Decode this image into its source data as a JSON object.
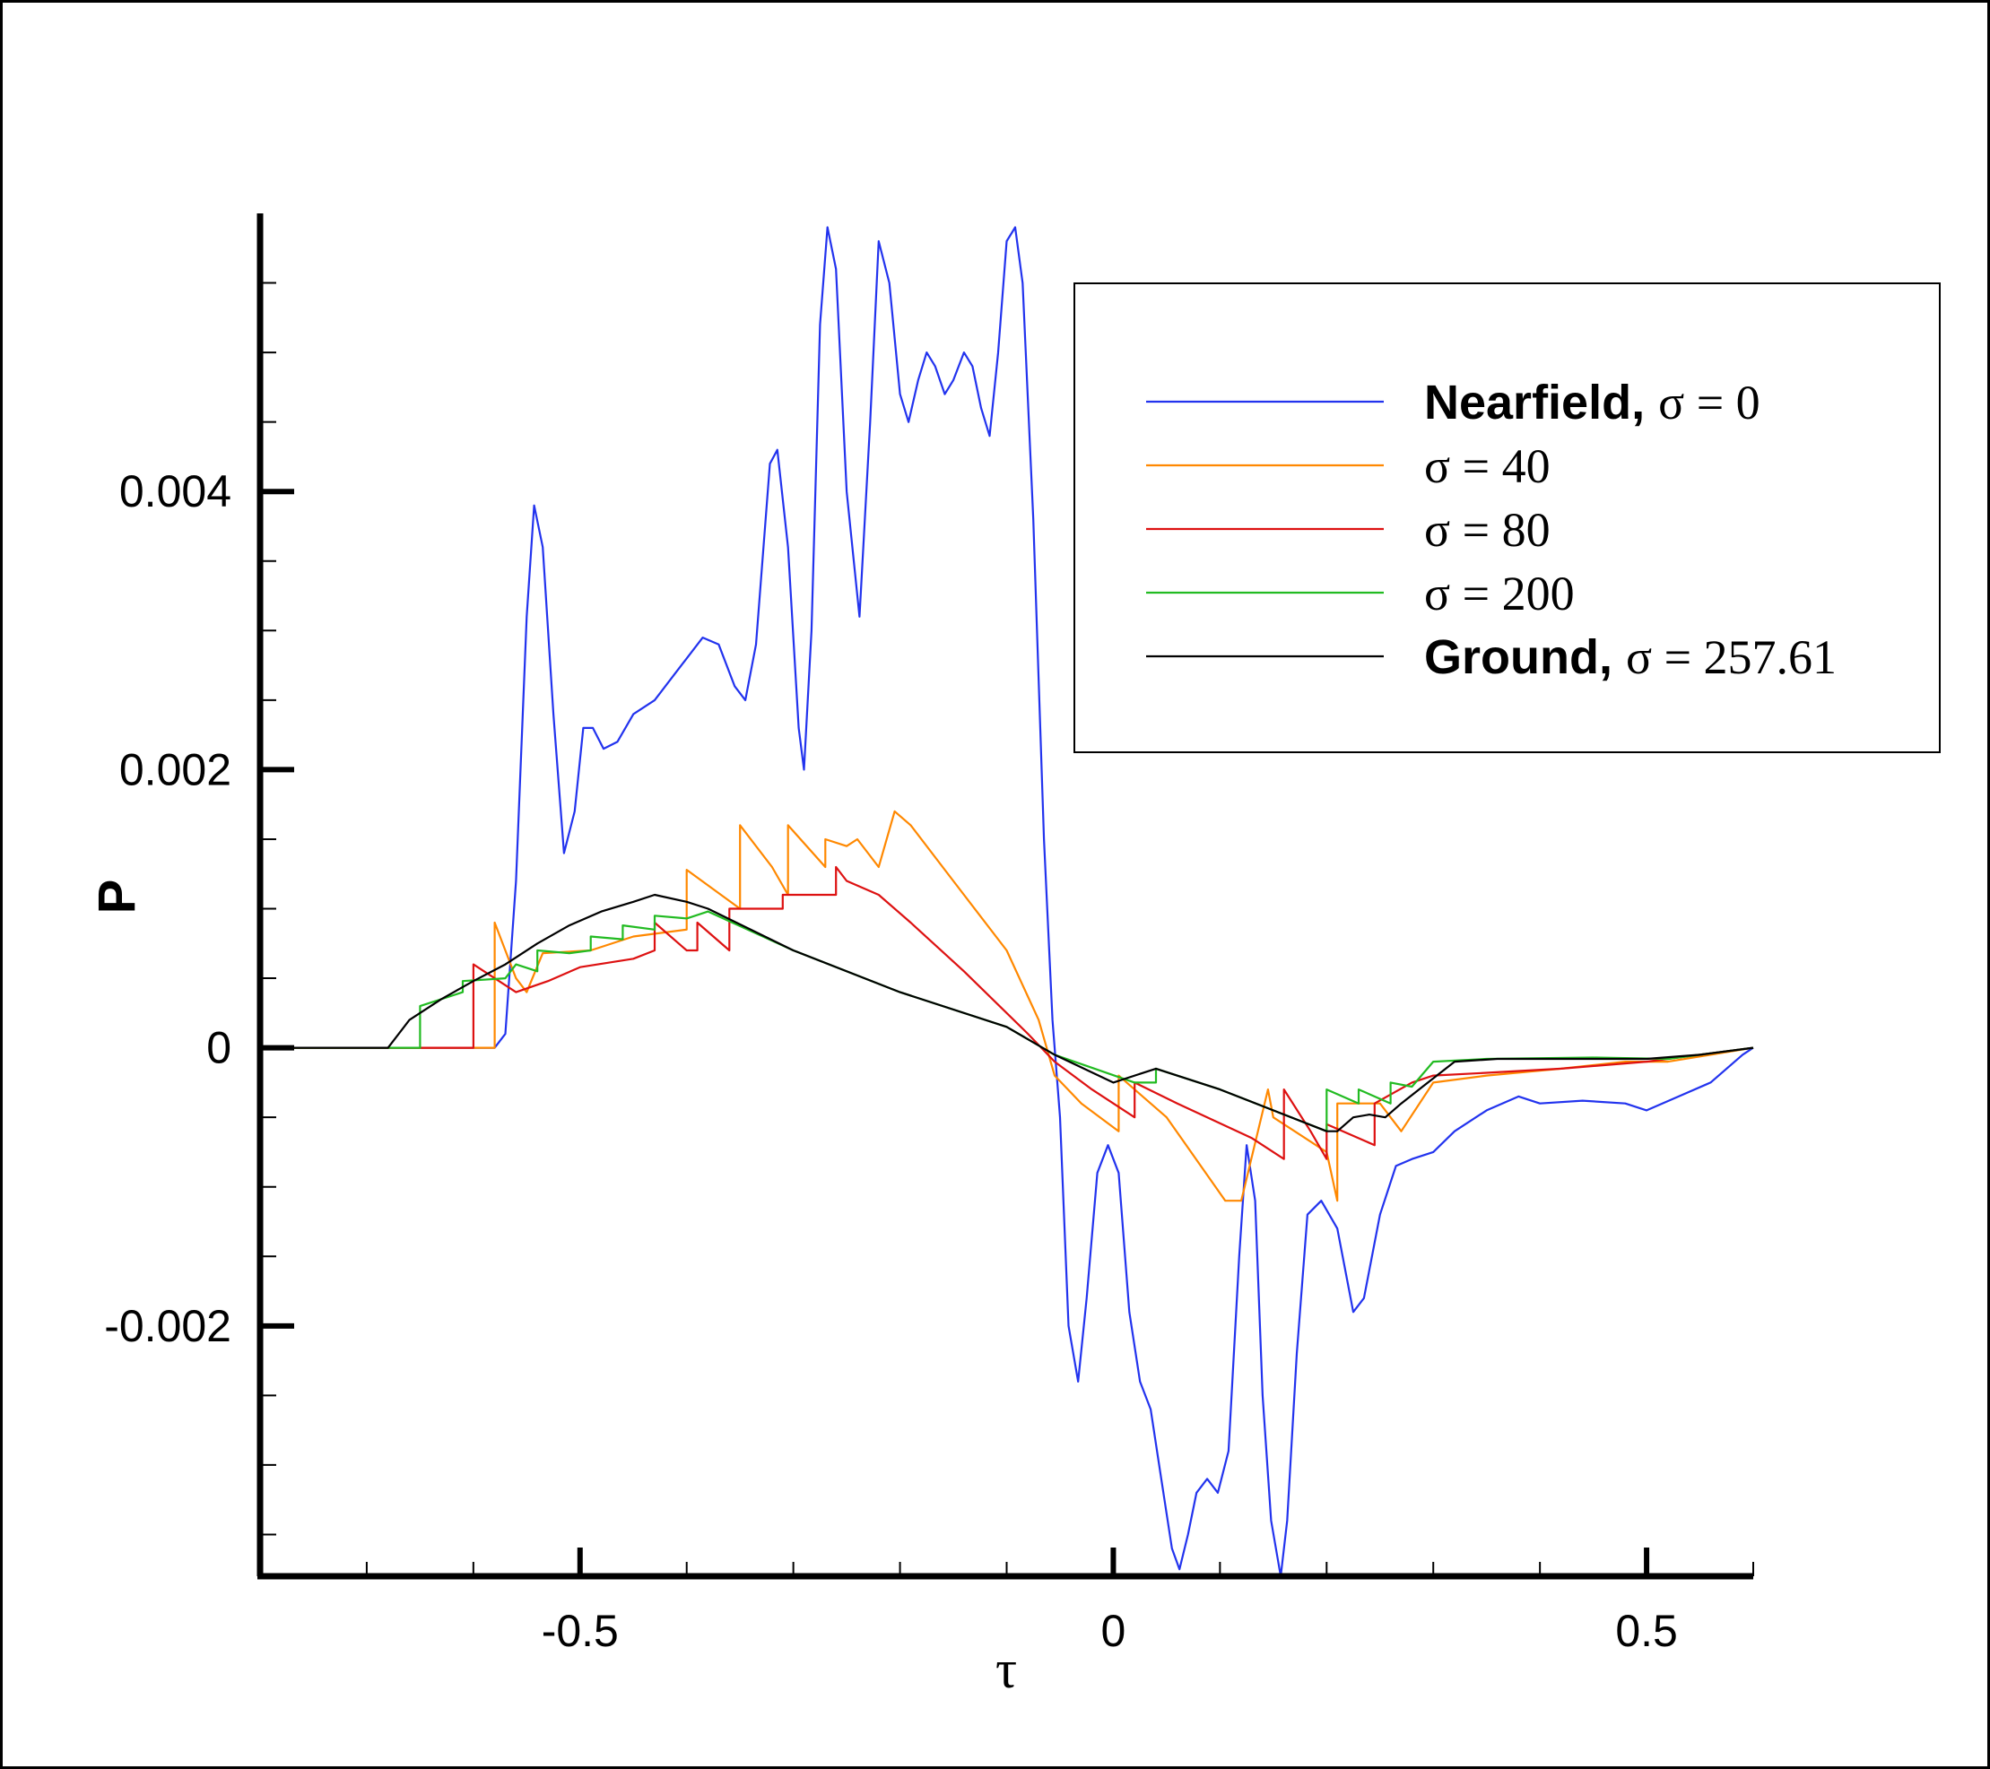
{
  "chart_data": {
    "type": "line",
    "xlabel": "τ",
    "ylabel": "P",
    "xlim": [
      -0.8,
      0.6
    ],
    "ylim": [
      -0.0038,
      0.006
    ],
    "x_ticks": [
      -0.5,
      0,
      0.5
    ],
    "x_tick_labels": [
      "-0.5",
      "0",
      "0.5"
    ],
    "y_ticks": [
      0.004,
      0.002,
      0,
      -0.002
    ],
    "y_tick_labels": [
      "0.004",
      "0.002",
      "0",
      "-0.002"
    ],
    "grid": false,
    "legend_position": "top-right",
    "series": [
      {
        "name": "Nearfield,",
        "name_suffix": "σ = 0",
        "label_bold": true,
        "color": "#2233ee",
        "points": [
          [
            -0.77,
            0
          ],
          [
            -0.58,
            0
          ],
          [
            -0.57,
            0.0001
          ],
          [
            -0.56,
            0.0012
          ],
          [
            -0.55,
            0.0031
          ],
          [
            -0.543,
            0.0039
          ],
          [
            -0.535,
            0.0036
          ],
          [
            -0.525,
            0.0024
          ],
          [
            -0.515,
            0.0014
          ],
          [
            -0.505,
            0.0017
          ],
          [
            -0.497,
            0.0023
          ],
          [
            -0.488,
            0.0023
          ],
          [
            -0.478,
            0.00215
          ],
          [
            -0.465,
            0.0022
          ],
          [
            -0.45,
            0.0024
          ],
          [
            -0.43,
            0.0025
          ],
          [
            -0.41,
            0.0027
          ],
          [
            -0.385,
            0.00295
          ],
          [
            -0.37,
            0.0029
          ],
          [
            -0.355,
            0.0026
          ],
          [
            -0.345,
            0.0025
          ],
          [
            -0.335,
            0.0029
          ],
          [
            -0.322,
            0.0042
          ],
          [
            -0.315,
            0.0043
          ],
          [
            -0.305,
            0.0036
          ],
          [
            -0.295,
            0.0023
          ],
          [
            -0.29,
            0.002
          ],
          [
            -0.283,
            0.003
          ],
          [
            -0.275,
            0.0052
          ],
          [
            -0.268,
            0.0059
          ],
          [
            -0.26,
            0.0056
          ],
          [
            -0.25,
            0.004
          ],
          [
            -0.238,
            0.0031
          ],
          [
            -0.228,
            0.0045
          ],
          [
            -0.22,
            0.0058
          ],
          [
            -0.21,
            0.0055
          ],
          [
            -0.2,
            0.0047
          ],
          [
            -0.192,
            0.0045
          ],
          [
            -0.183,
            0.0048
          ],
          [
            -0.175,
            0.005
          ],
          [
            -0.167,
            0.0049
          ],
          [
            -0.158,
            0.0047
          ],
          [
            -0.15,
            0.0048
          ],
          [
            -0.14,
            0.005
          ],
          [
            -0.132,
            0.0049
          ],
          [
            -0.124,
            0.0046
          ],
          [
            -0.116,
            0.0044
          ],
          [
            -0.108,
            0.005
          ],
          [
            -0.1,
            0.0058
          ],
          [
            -0.092,
            0.0059
          ],
          [
            -0.085,
            0.0055
          ],
          [
            -0.075,
            0.0038
          ],
          [
            -0.065,
            0.0015
          ],
          [
            -0.057,
            0.0002
          ],
          [
            -0.05,
            -0.0005
          ],
          [
            -0.042,
            -0.002
          ],
          [
            -0.033,
            -0.0024
          ],
          [
            -0.025,
            -0.0018
          ],
          [
            -0.015,
            -0.0009
          ],
          [
            -0.005,
            -0.0007
          ],
          [
            0.005,
            -0.0009
          ],
          [
            0.015,
            -0.0019
          ],
          [
            0.025,
            -0.0024
          ],
          [
            0.035,
            -0.0026
          ],
          [
            0.045,
            -0.0031
          ],
          [
            0.055,
            -0.0036
          ],
          [
            0.062,
            -0.00375
          ],
          [
            0.07,
            -0.0035
          ],
          [
            0.078,
            -0.0032
          ],
          [
            0.088,
            -0.0031
          ],
          [
            0.098,
            -0.0032
          ],
          [
            0.108,
            -0.0029
          ],
          [
            0.118,
            -0.0015
          ],
          [
            0.125,
            -0.0007
          ],
          [
            0.133,
            -0.0011
          ],
          [
            0.14,
            -0.0025
          ],
          [
            0.148,
            -0.0034
          ],
          [
            0.157,
            -0.0038
          ],
          [
            0.163,
            -0.0034
          ],
          [
            0.172,
            -0.0022
          ],
          [
            0.182,
            -0.0012
          ],
          [
            0.195,
            -0.0011
          ],
          [
            0.21,
            -0.0013
          ],
          [
            0.225,
            -0.0019
          ],
          [
            0.235,
            -0.0018
          ],
          [
            0.25,
            -0.0012
          ],
          [
            0.265,
            -0.00085
          ],
          [
            0.28,
            -0.0008
          ],
          [
            0.3,
            -0.00075
          ],
          [
            0.32,
            -0.0006
          ],
          [
            0.35,
            -0.00045
          ],
          [
            0.38,
            -0.00035
          ],
          [
            0.4,
            -0.0004
          ],
          [
            0.44,
            -0.00038
          ],
          [
            0.48,
            -0.0004
          ],
          [
            0.5,
            -0.00045
          ],
          [
            0.53,
            -0.00035
          ],
          [
            0.56,
            -0.00025
          ],
          [
            0.59,
            -5e-05
          ],
          [
            0.6,
            0
          ]
        ]
      },
      {
        "name": "",
        "name_suffix": "σ = 40",
        "label_bold": false,
        "color": "#ff8800",
        "points": [
          [
            -0.77,
            0
          ],
          [
            -0.58,
            0
          ],
          [
            -0.58,
            0.0009
          ],
          [
            -0.56,
            0.0005
          ],
          [
            -0.55,
            0.0004
          ],
          [
            -0.535,
            0.00068
          ],
          [
            -0.49,
            0.0007
          ],
          [
            -0.45,
            0.0008
          ],
          [
            -0.4,
            0.00085
          ],
          [
            -0.4,
            0.00128
          ],
          [
            -0.35,
            0.001
          ],
          [
            -0.35,
            0.0016
          ],
          [
            -0.32,
            0.0013
          ],
          [
            -0.305,
            0.0011
          ],
          [
            -0.305,
            0.0016
          ],
          [
            -0.27,
            0.0013
          ],
          [
            -0.27,
            0.0015
          ],
          [
            -0.25,
            0.00145
          ],
          [
            -0.24,
            0.0015
          ],
          [
            -0.22,
            0.0013
          ],
          [
            -0.205,
            0.0017
          ],
          [
            -0.19,
            0.0016
          ],
          [
            -0.15,
            0.0012
          ],
          [
            -0.1,
            0.0007
          ],
          [
            -0.07,
            0.0002
          ],
          [
            -0.055,
            -0.0002
          ],
          [
            -0.03,
            -0.0004
          ],
          [
            0.005,
            -0.0006
          ],
          [
            0.005,
            -0.0002
          ],
          [
            0.05,
            -0.0005
          ],
          [
            0.105,
            -0.0011
          ],
          [
            0.105,
            -0.0011
          ],
          [
            0.12,
            -0.0011
          ],
          [
            0.145,
            -0.0003
          ],
          [
            0.15,
            -0.0005
          ],
          [
            0.2,
            -0.00075
          ],
          [
            0.21,
            -0.0011
          ],
          [
            0.21,
            -0.0004
          ],
          [
            0.25,
            -0.0004
          ],
          [
            0.27,
            -0.0006
          ],
          [
            0.3,
            -0.00025
          ],
          [
            0.35,
            -0.0002
          ],
          [
            0.42,
            -0.00015
          ],
          [
            0.48,
            -0.0001
          ],
          [
            0.52,
            -0.0001
          ],
          [
            0.56,
            -5e-05
          ],
          [
            0.6,
            0
          ]
        ]
      },
      {
        "name": "",
        "name_suffix": "σ = 80",
        "label_bold": false,
        "color": "#dd1111",
        "points": [
          [
            -0.77,
            0
          ],
          [
            -0.6,
            0
          ],
          [
            -0.6,
            0.0006
          ],
          [
            -0.58,
            0.0005
          ],
          [
            -0.56,
            0.0004
          ],
          [
            -0.53,
            0.00048
          ],
          [
            -0.5,
            0.00058
          ],
          [
            -0.45,
            0.00064
          ],
          [
            -0.43,
            0.0007
          ],
          [
            -0.43,
            0.0009
          ],
          [
            -0.4,
            0.0007
          ],
          [
            -0.39,
            0.0007
          ],
          [
            -0.39,
            0.0009
          ],
          [
            -0.36,
            0.0007
          ],
          [
            -0.36,
            0.001
          ],
          [
            -0.31,
            0.001
          ],
          [
            -0.31,
            0.0011
          ],
          [
            -0.28,
            0.0011
          ],
          [
            -0.26,
            0.0011
          ],
          [
            -0.26,
            0.0013
          ],
          [
            -0.25,
            0.0012
          ],
          [
            -0.22,
            0.0011
          ],
          [
            -0.19,
            0.0009
          ],
          [
            -0.14,
            0.00055
          ],
          [
            -0.08,
            0.0001
          ],
          [
            -0.055,
            -0.0001
          ],
          [
            -0.02,
            -0.0003
          ],
          [
            0.02,
            -0.0005
          ],
          [
            0.02,
            -0.00025
          ],
          [
            0.06,
            -0.0004
          ],
          [
            0.13,
            -0.00065
          ],
          [
            0.16,
            -0.0008
          ],
          [
            0.16,
            -0.0003
          ],
          [
            0.185,
            -0.0006
          ],
          [
            0.2,
            -0.0008
          ],
          [
            0.2,
            -0.00055
          ],
          [
            0.245,
            -0.0007
          ],
          [
            0.245,
            -0.0004
          ],
          [
            0.28,
            -0.00025
          ],
          [
            0.3,
            -0.0002
          ],
          [
            0.35,
            -0.00018
          ],
          [
            0.42,
            -0.00015
          ],
          [
            0.5,
            -0.0001
          ],
          [
            0.55,
            -5e-05
          ],
          [
            0.6,
            0
          ]
        ]
      },
      {
        "name": "",
        "name_suffix": "σ = 200",
        "label_bold": false,
        "color": "#22bb22",
        "points": [
          [
            -0.77,
            0
          ],
          [
            -0.65,
            0
          ],
          [
            -0.65,
            0.0003
          ],
          [
            -0.61,
            0.0004
          ],
          [
            -0.61,
            0.00048
          ],
          [
            -0.57,
            0.0005
          ],
          [
            -0.56,
            0.0006
          ],
          [
            -0.54,
            0.00055
          ],
          [
            -0.54,
            0.0007
          ],
          [
            -0.51,
            0.00068
          ],
          [
            -0.49,
            0.0007
          ],
          [
            -0.49,
            0.0008
          ],
          [
            -0.46,
            0.00078
          ],
          [
            -0.46,
            0.00088
          ],
          [
            -0.43,
            0.00085
          ],
          [
            -0.43,
            0.00095
          ],
          [
            -0.4,
            0.00093
          ],
          [
            -0.38,
            0.00098
          ],
          [
            -0.3,
            0.0007
          ],
          [
            -0.2,
            0.0004
          ],
          [
            -0.1,
            0.00015
          ],
          [
            -0.055,
            -5e-05
          ],
          [
            0.02,
            -0.00025
          ],
          [
            0.04,
            -0.00025
          ],
          [
            0.04,
            -0.00015
          ],
          [
            0.1,
            -0.0003
          ],
          [
            0.15,
            -0.00045
          ],
          [
            0.2,
            -0.0006
          ],
          [
            0.2,
            -0.0003
          ],
          [
            0.23,
            -0.0004
          ],
          [
            0.23,
            -0.0003
          ],
          [
            0.26,
            -0.0004
          ],
          [
            0.26,
            -0.00025
          ],
          [
            0.28,
            -0.00028
          ],
          [
            0.3,
            -0.0001
          ],
          [
            0.35,
            -8e-05
          ],
          [
            0.45,
            -7e-05
          ],
          [
            0.52,
            -8e-05
          ],
          [
            0.56,
            -4e-05
          ],
          [
            0.6,
            0
          ]
        ]
      },
      {
        "name": "Ground,",
        "name_suffix": "σ = 257.61",
        "label_bold": true,
        "color": "#000000",
        "points": [
          [
            -0.77,
            0
          ],
          [
            -0.68,
            0
          ],
          [
            -0.66,
            0.0002
          ],
          [
            -0.63,
            0.00035
          ],
          [
            -0.6,
            0.00048
          ],
          [
            -0.57,
            0.0006
          ],
          [
            -0.54,
            0.00075
          ],
          [
            -0.51,
            0.00088
          ],
          [
            -0.48,
            0.00098
          ],
          [
            -0.45,
            0.00105
          ],
          [
            -0.43,
            0.0011
          ],
          [
            -0.4,
            0.00105
          ],
          [
            -0.38,
            0.001
          ],
          [
            -0.3,
            0.0007
          ],
          [
            -0.2,
            0.0004
          ],
          [
            -0.1,
            0.00015
          ],
          [
            -0.055,
            -5e-05
          ],
          [
            0,
            -0.00025
          ],
          [
            0.04,
            -0.00015
          ],
          [
            0.1,
            -0.0003
          ],
          [
            0.15,
            -0.00045
          ],
          [
            0.2,
            -0.0006
          ],
          [
            0.21,
            -0.0006
          ],
          [
            0.225,
            -0.0005
          ],
          [
            0.24,
            -0.00048
          ],
          [
            0.255,
            -0.0005
          ],
          [
            0.27,
            -0.0004
          ],
          [
            0.29,
            -0.00028
          ],
          [
            0.32,
            -0.0001
          ],
          [
            0.36,
            -8e-05
          ],
          [
            0.42,
            -8e-05
          ],
          [
            0.5,
            -8e-05
          ],
          [
            0.55,
            -5e-05
          ],
          [
            0.6,
            0
          ]
        ]
      }
    ]
  }
}
